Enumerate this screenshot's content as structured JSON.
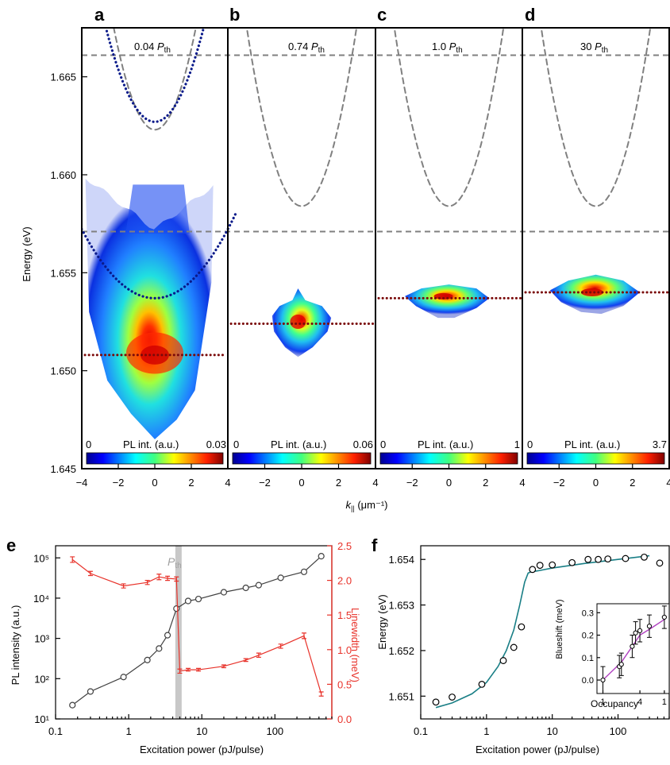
{
  "figure": {
    "top_ylabel": "Energy (eV)",
    "top_xlabel_main": "k",
    "top_xlabel_sub": "||",
    "top_xlabel_unit": " (μm⁻¹)",
    "colorbar_label": "PL int. (a.u.)",
    "inset_xlabel": "Occupancy",
    "inset_ylabel": "Blueshift (meV)"
  },
  "panels": [
    {
      "letter": "a",
      "power_value": "0.04",
      "power_unit_main": "P",
      "power_unit_sub": "th",
      "cb_min": "0",
      "cb_max": "0.03"
    },
    {
      "letter": "b",
      "power_value": "0.74",
      "power_unit_main": "P",
      "power_unit_sub": "th",
      "cb_min": "0",
      "cb_max": "0.06"
    },
    {
      "letter": "c",
      "power_value": "1.0",
      "power_unit_main": "P",
      "power_unit_sub": "th",
      "cb_min": "0",
      "cb_max": "1"
    },
    {
      "letter": "d",
      "power_value": "30",
      "power_unit_main": "P",
      "power_unit_sub": "th",
      "cb_min": "0",
      "cb_max": "3.7"
    },
    {
      "letter": "e"
    },
    {
      "letter": "f"
    }
  ],
  "colors": {
    "black_series": "#404040",
    "red_series": "#e8322a",
    "fit_line": "#1a7f86",
    "inset_fit": "#b040c0",
    "dashed": "#808080",
    "dotted_red": "#7a0a0a",
    "dotted_blue": "#0a1a8a"
  },
  "chart_data": [
    {
      "type": "heatmap",
      "panel": "a-d",
      "x_range": [
        -4,
        4
      ],
      "xticks": [
        "−4",
        "−2",
        "0",
        "2",
        "4"
      ],
      "ylim": [
        1.645,
        1.6675
      ],
      "yticks": [
        "1.645",
        "1.650",
        "1.655",
        "1.660",
        "1.665"
      ],
      "exciton_levels": [
        1.6661,
        1.6571
      ],
      "dispersion_min": {
        "a_upper_dotted": 1.6627,
        "a_lower_dotted": 1.6537,
        "bcd_dashed": 1.6584
      },
      "condensate_energy": {
        "a": 1.6508,
        "b": 1.6524,
        "c": 1.6537,
        "d": 1.654
      }
    },
    {
      "type": "line",
      "panel": "e",
      "xlabel": "Excitation power (pJ/pulse)",
      "ylabel": "PL intensity (a.u.)",
      "y2label": "Linewidth (meV)",
      "xscale": "log",
      "xlim": [
        0.1,
        600
      ],
      "yscale": "log",
      "ylim": [
        10,
        200000
      ],
      "y2lim": [
        0,
        2.5
      ],
      "xticks": [
        "0.1",
        "1",
        "10",
        "100"
      ],
      "yticks": [
        "10¹",
        "10²",
        "10³",
        "10⁴",
        "10⁵"
      ],
      "y2ticks": [
        "0.0",
        "0.5",
        "1.0",
        "1.5",
        "2.0",
        "2.5"
      ],
      "threshold_label_main": "P",
      "threshold_label_sub": "th",
      "threshold_x": 4.8,
      "series": [
        {
          "name": "PL intensity",
          "axis": "left",
          "x": [
            0.17,
            0.3,
            0.85,
            1.8,
            2.6,
            3.4,
            4.5,
            6.5,
            9,
            20,
            40,
            60,
            120,
            250,
            430
          ],
          "y": [
            22,
            48,
            110,
            290,
            560,
            1200,
            5500,
            8500,
            9500,
            14000,
            18000,
            21000,
            32000,
            45000,
            110000
          ]
        },
        {
          "name": "Linewidth",
          "axis": "right",
          "x": [
            0.17,
            0.3,
            0.85,
            1.8,
            2.6,
            3.4,
            4.5,
            5.0,
            6.5,
            9,
            20,
            40,
            60,
            120,
            250,
            430
          ],
          "y": [
            2.3,
            2.1,
            1.92,
            1.97,
            2.05,
            2.03,
            2.02,
            0.69,
            0.71,
            0.71,
            0.76,
            0.85,
            0.92,
            1.05,
            1.2,
            0.36
          ],
          "err": [
            0.04,
            0.03,
            0.03,
            0.03,
            0.04,
            0.03,
            0.03,
            0.03,
            0.02,
            0.02,
            0.02,
            0.02,
            0.03,
            0.03,
            0.04,
            0.03
          ]
        }
      ]
    },
    {
      "type": "scatter",
      "panel": "f",
      "xlabel": "Excitation power (pJ/pulse)",
      "ylabel": "Energy (eV)",
      "xscale": "log",
      "xlim": [
        0.1,
        600
      ],
      "ylim": [
        1.6505,
        1.6543
      ],
      "xticks": [
        "0.1",
        "1",
        "10",
        "100"
      ],
      "yticks": [
        "1.651",
        "1.652",
        "1.653",
        "1.654"
      ],
      "points": {
        "x": [
          0.17,
          0.3,
          0.85,
          1.8,
          2.6,
          3.4,
          5.0,
          6.5,
          10,
          20,
          35,
          50,
          70,
          130,
          250,
          430
        ],
        "y": [
          1.65087,
          1.65098,
          1.65126,
          1.65178,
          1.65207,
          1.65252,
          1.65378,
          1.65387,
          1.65388,
          1.65393,
          1.654,
          1.654,
          1.65401,
          1.65402,
          1.65405,
          1.65392
        ]
      },
      "fit": {
        "x": [
          0.17,
          0.3,
          0.6,
          1.0,
          1.5,
          2.0,
          2.6,
          3.2,
          3.8,
          4.3,
          4.8,
          6,
          10,
          30,
          100,
          300
        ],
        "y": [
          1.65075,
          1.65085,
          1.65105,
          1.6513,
          1.65165,
          1.652,
          1.65245,
          1.653,
          1.6535,
          1.6537,
          1.65373,
          1.65375,
          1.65381,
          1.65391,
          1.654,
          1.65408
        ]
      },
      "inset": {
        "xlabel": "Occupancy",
        "ylabel": "Blueshift (meV)",
        "xscale": "log",
        "xlim": [
          0.8,
          12
        ],
        "ylim": [
          -0.06,
          0.34
        ],
        "xticks": [
          "1",
          "4",
          "1"
        ],
        "yticks": [
          "0.0",
          "0.1",
          "0.2",
          "0.3"
        ],
        "x": [
          1.0,
          1.85,
          2.0,
          3.0,
          3.4,
          4.0,
          5.7,
          10.0
        ],
        "y": [
          0.0,
          0.06,
          0.07,
          0.15,
          0.21,
          0.22,
          0.24,
          0.28
        ],
        "err": [
          0.06,
          0.05,
          0.05,
          0.05,
          0.05,
          0.05,
          0.05,
          0.05
        ],
        "fit_x": [
          1.0,
          2.0,
          3.0,
          4.0,
          6.0,
          10.0
        ],
        "fit_y": [
          0.0,
          0.08,
          0.15,
          0.2,
          0.23,
          0.27
        ]
      }
    }
  ]
}
